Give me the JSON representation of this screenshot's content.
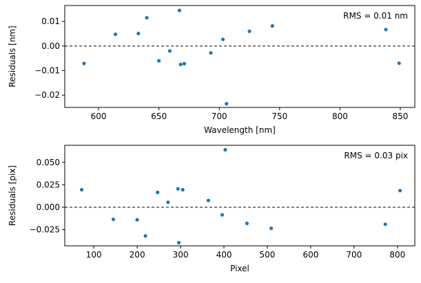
{
  "chart_data": [
    {
      "type": "scatter",
      "xlabel": "Wavelength [nm]",
      "ylabel": "Residuals [nm]",
      "xlim": [
        572,
        862
      ],
      "ylim": [
        -0.025,
        0.0165
      ],
      "xticks": [
        600,
        650,
        700,
        750,
        800,
        850
      ],
      "yticks": [
        -0.02,
        -0.01,
        0.0,
        0.01
      ],
      "ytick_labels": [
        "−0.02",
        "−0.01",
        "0.00",
        "0.01"
      ],
      "annotation": "RMS = 0.01 nm",
      "reference_line": 0,
      "grid": false,
      "point_color": "#1f77b4",
      "points": [
        {
          "x": 588,
          "y": -0.0071
        },
        {
          "x": 614,
          "y": 0.0048
        },
        {
          "x": 633,
          "y": 0.0051
        },
        {
          "x": 640,
          "y": 0.0115
        },
        {
          "x": 650,
          "y": -0.006
        },
        {
          "x": 659,
          "y": -0.002
        },
        {
          "x": 667,
          "y": 0.0145
        },
        {
          "x": 668,
          "y": -0.0075
        },
        {
          "x": 671,
          "y": -0.0072
        },
        {
          "x": 693,
          "y": -0.0028
        },
        {
          "x": 703,
          "y": 0.0027
        },
        {
          "x": 706,
          "y": -0.0235
        },
        {
          "x": 725,
          "y": 0.006
        },
        {
          "x": 744,
          "y": 0.0082
        },
        {
          "x": 838,
          "y": 0.0067
        },
        {
          "x": 849,
          "y": -0.007
        }
      ]
    },
    {
      "type": "scatter",
      "xlabel": "Pixel",
      "ylabel": "Residuals [pix]",
      "xlim": [
        33,
        840
      ],
      "ylim": [
        -0.043,
        0.069
      ],
      "xticks": [
        100,
        200,
        300,
        400,
        500,
        600,
        700,
        800
      ],
      "yticks": [
        -0.025,
        0.0,
        0.025,
        0.05
      ],
      "ytick_labels": [
        "−0.025",
        "0.000",
        "0.025",
        "0.050"
      ],
      "annotation": "RMS = 0.03 pix",
      "reference_line": 0,
      "grid": false,
      "point_color": "#1f77b4",
      "points": [
        {
          "x": 72,
          "y": 0.0195
        },
        {
          "x": 145,
          "y": -0.0135
        },
        {
          "x": 200,
          "y": -0.014
        },
        {
          "x": 219,
          "y": -0.032
        },
        {
          "x": 247,
          "y": 0.0165
        },
        {
          "x": 271,
          "y": 0.0055
        },
        {
          "x": 294,
          "y": 0.0205
        },
        {
          "x": 296,
          "y": -0.0395
        },
        {
          "x": 305,
          "y": 0.0195
        },
        {
          "x": 364,
          "y": 0.0075
        },
        {
          "x": 396,
          "y": -0.0085
        },
        {
          "x": 403,
          "y": 0.064
        },
        {
          "x": 453,
          "y": -0.018
        },
        {
          "x": 509,
          "y": -0.0235
        },
        {
          "x": 772,
          "y": -0.019
        },
        {
          "x": 806,
          "y": 0.0185
        }
      ]
    }
  ]
}
